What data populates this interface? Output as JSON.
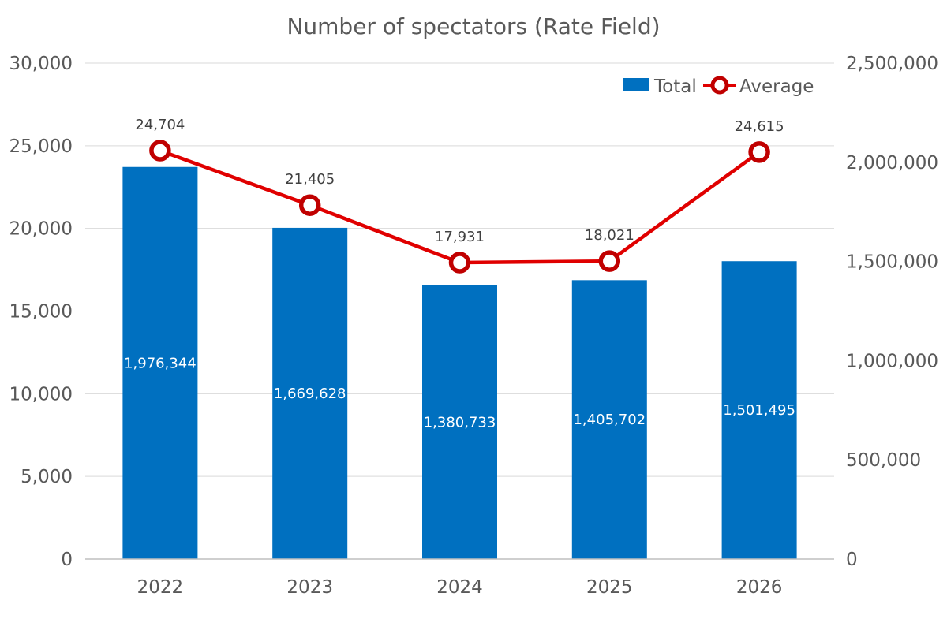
{
  "chart_data": {
    "type": "bar+line",
    "title": "Number of spectators (Rate Field)",
    "categories": [
      "2022",
      "2023",
      "2024",
      "2025",
      "2026"
    ],
    "series": [
      {
        "name": "Total",
        "type": "bar",
        "axis": "right",
        "values": [
          1976344,
          1669628,
          1380733,
          1405702,
          1501495
        ],
        "labels": [
          "1,976,344",
          "1,669,628",
          "1,380,733",
          "1,405,702",
          "1,501,495"
        ],
        "color": "#0070c0"
      },
      {
        "name": "Average",
        "type": "line",
        "axis": "left",
        "values": [
          24704,
          21405,
          17931,
          18021,
          24615
        ],
        "labels": [
          "24,704",
          "21,405",
          "17,931",
          "18,021",
          "24,615"
        ],
        "color": "#e00000"
      }
    ],
    "y_left": {
      "min": 0,
      "max": 30000,
      "ticks": [
        0,
        5000,
        10000,
        15000,
        20000,
        25000,
        30000
      ],
      "tick_labels": [
        "0",
        "5,000",
        "10,000",
        "15,000",
        "20,000",
        "25,000",
        "30,000"
      ]
    },
    "y_right": {
      "min": 0,
      "max": 2500000,
      "ticks": [
        0,
        500000,
        1000000,
        1500000,
        2000000,
        2500000
      ],
      "tick_labels": [
        "0",
        "500,000",
        "1,000,000",
        "1,500,000",
        "2,000,000",
        "2,500,000"
      ]
    },
    "grid": true,
    "legend": "top-right"
  }
}
